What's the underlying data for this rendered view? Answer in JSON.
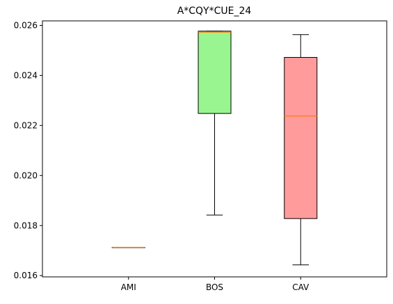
{
  "chart_data": {
    "type": "boxplot",
    "title": "A*CQY*CUE_24",
    "xlabel": "",
    "ylabel": "",
    "categories": [
      "AMI",
      "BOS",
      "CAV"
    ],
    "ylim": [
      0.01595,
      0.02618
    ],
    "yticks": [
      0.016,
      0.018,
      0.02,
      0.022,
      0.024,
      0.026
    ],
    "ytick_labels": [
      "0.016",
      "0.018",
      "0.020",
      "0.022",
      "0.024",
      "0.026"
    ],
    "grid": false,
    "boxes": [
      {
        "category": "AMI",
        "whisker_low": 0.01713,
        "q1": 0.01713,
        "median": 0.01713,
        "q3": 0.01713,
        "whisker_high": 0.01713,
        "color": "#ffa07a"
      },
      {
        "category": "BOS",
        "whisker_low": 0.01842,
        "q1": 0.02248,
        "median": 0.02573,
        "q3": 0.02577,
        "whisker_high": 0.02577,
        "color": "#98f590"
      },
      {
        "category": "CAV",
        "whisker_low": 0.01643,
        "q1": 0.01828,
        "median": 0.02238,
        "q3": 0.02472,
        "whisker_high": 0.02563,
        "color": "#ff9b9b"
      }
    ],
    "median_color": "#ff7f0e"
  }
}
